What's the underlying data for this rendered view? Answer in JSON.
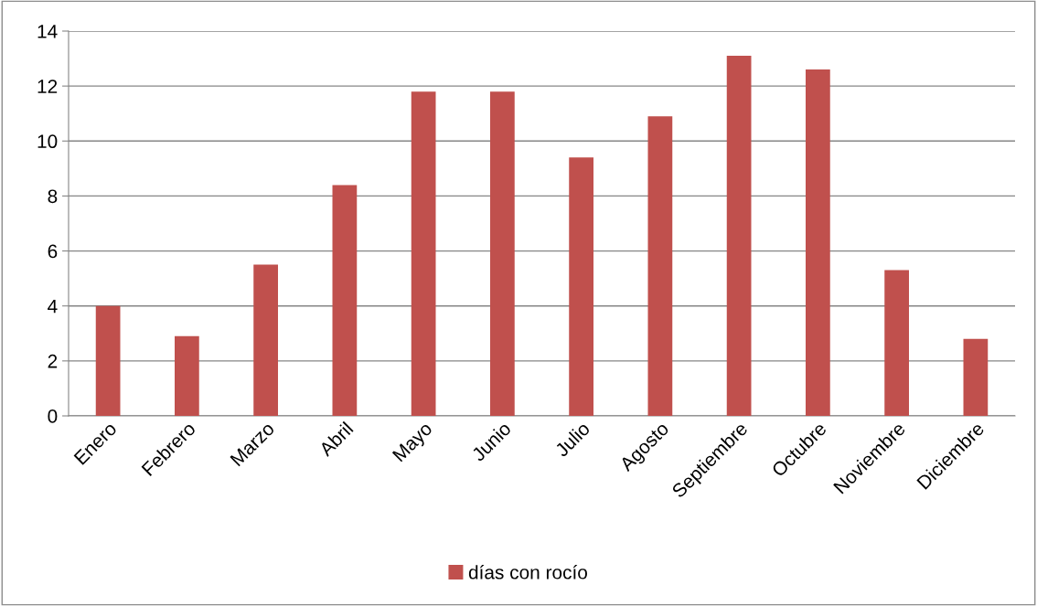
{
  "chart_data": {
    "type": "bar",
    "categories": [
      "Enero",
      "Febrero",
      "Marzo",
      "Abril",
      "Mayo",
      "Junio",
      "Julio",
      "Agosto",
      "Septiembre",
      "Octubre",
      "Noviembre",
      "Diciembre"
    ],
    "series": [
      {
        "name": "días con rocío",
        "color": "#c0504d",
        "values": [
          4.0,
          2.9,
          5.5,
          8.4,
          11.8,
          11.8,
          9.4,
          10.9,
          13.1,
          12.6,
          5.3,
          2.8
        ]
      }
    ],
    "ylim": [
      0,
      14
    ],
    "yticks": [
      0,
      2,
      4,
      6,
      8,
      10,
      12,
      14
    ],
    "grid": "y",
    "legend": "bottom"
  }
}
